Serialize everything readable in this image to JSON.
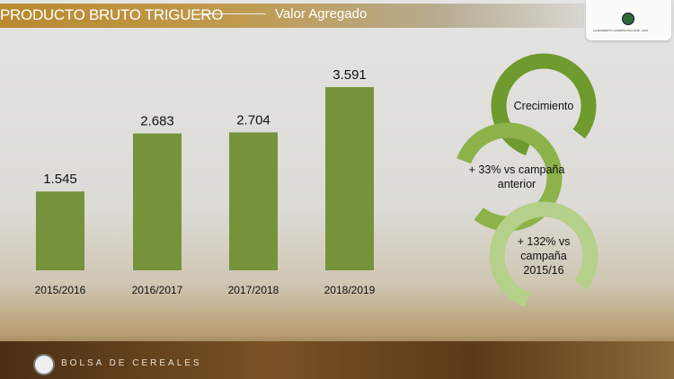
{
  "header": {
    "title": "PRODUCTO BRUTO TRIGUERO",
    "subtitle": "Valor Agregado"
  },
  "logo": {
    "text": "LANZAMIENTO CAMPAÑA FINA 2018 - 2019"
  },
  "footer": {
    "brand": "BOLSA DE CEREALES"
  },
  "cycle": {
    "items": [
      [
        "Crecimiento"
      ],
      [
        "+ 33% vs campaña",
        "anterior"
      ],
      [
        "+ 132% vs",
        "campaña",
        "2015/16"
      ]
    ]
  },
  "colors": {
    "bar": "#76933c",
    "ring1": "#6f9a2e",
    "ring2": "#8db24a",
    "ring3": "#b5d08a"
  },
  "chart_data": {
    "type": "bar",
    "title": "",
    "xlabel": "",
    "ylabel": "",
    "categories": [
      "2015/2016",
      "2016/2017",
      "2017/2018",
      "2018/2019"
    ],
    "values": [
      1.545,
      2.683,
      2.704,
      3.591
    ],
    "value_labels": [
      "1.545",
      "2.683",
      "2.704",
      "3.591"
    ],
    "ylim": [
      0,
      3.591
    ]
  }
}
